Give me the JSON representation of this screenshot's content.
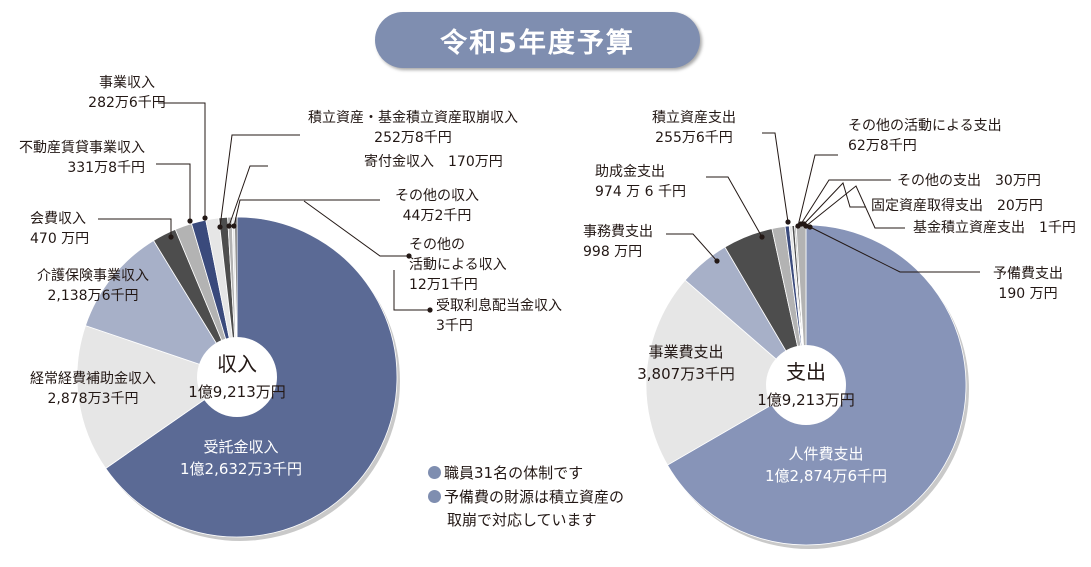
{
  "title": "令和5年度予算",
  "colors": {
    "badge": "#7f8eb0",
    "income_main": "#5b6a95",
    "expense_main": "#8794b8",
    "light_gray": "#e6e6e6",
    "slate": "#a7b0c8",
    "dark_gray": "#4d4d4d",
    "mid_gray": "#b3b3b3",
    "navy": "#3a4a7c"
  },
  "notes": {
    "line1": "職員31名の体制です",
    "line2": "予備費の財源は積立資産の",
    "line3": "取崩で対応しています"
  },
  "chart_data": [
    {
      "type": "pie",
      "name": "収入",
      "center_label": "収入",
      "center_value": "1億9,213万円",
      "total": 192130,
      "unit": "千円",
      "slices": [
        {
          "label": "受託金収入",
          "amount": "1億2,632万3千円",
          "value": 126323
        },
        {
          "label": "経常経費補助金収入",
          "amount": "2,878万3千円",
          "value": 28783
        },
        {
          "label": "介護保険事業収入",
          "amount": "2,138万6千円",
          "value": 21386
        },
        {
          "label": "会費収入",
          "amount": "470 万円",
          "value": 4700
        },
        {
          "label": "不動産賃貸事業収入",
          "amount": "331万8千円",
          "value": 3318
        },
        {
          "label": "事業収入",
          "amount": "282万6千円",
          "value": 2826
        },
        {
          "label": "積立資産・基金積立資産取崩収入",
          "amount": "252万8千円",
          "value": 2528
        },
        {
          "label": "寄付金収入",
          "amount": "170万円",
          "value": 1700
        },
        {
          "label": "その他の収入",
          "amount": "44万2千円",
          "value": 442
        },
        {
          "label": "その他の活動による収入",
          "amount": "12万1千円",
          "value": 121
        },
        {
          "label": "受取利息配当金収入",
          "amount": "3千円",
          "value": 3
        }
      ]
    },
    {
      "type": "pie",
      "name": "支出",
      "center_label": "支出",
      "center_value": "1億9,213万円",
      "total": 192130,
      "unit": "千円",
      "slices": [
        {
          "label": "人件費支出",
          "amount": "1億2,874万6千円",
          "value": 128746
        },
        {
          "label": "事業費支出",
          "amount": "3,807万3千円",
          "value": 38073
        },
        {
          "label": "事務費支出",
          "amount": "998 万円",
          "value": 9980
        },
        {
          "label": "助成金支出",
          "amount": "974 万 6 千円",
          "value": 9746
        },
        {
          "label": "積立資産支出",
          "amount": "255万6千円",
          "value": 2556
        },
        {
          "label": "その他の活動による支出",
          "amount": "62万8千円",
          "value": 628
        },
        {
          "label": "その他の支出",
          "amount": "30万円",
          "value": 300
        },
        {
          "label": "固定資産取得支出",
          "amount": "20万円",
          "value": 200
        },
        {
          "label": "基金積立資産支出",
          "amount": "1千円",
          "value": 1
        },
        {
          "label": "予備費支出",
          "amount": "190 万円",
          "value": 1900
        }
      ]
    }
  ]
}
